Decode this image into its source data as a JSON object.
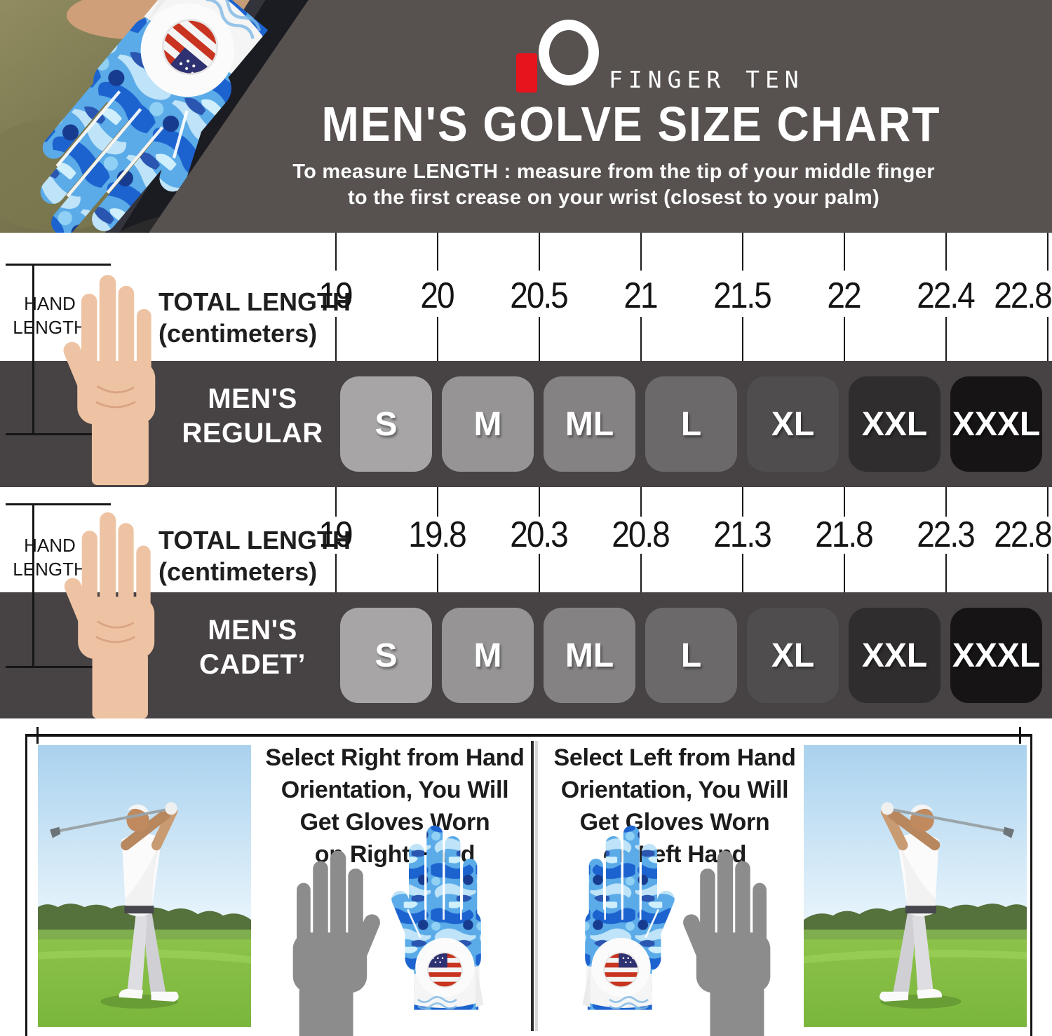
{
  "brand": {
    "name": "FINGER TEN",
    "logo_mark": "10"
  },
  "header": {
    "title": "MEN'S GOLVE SIZE CHART",
    "subtitle_line1": "To measure LENGTH : measure from the tip of your middle finger",
    "subtitle_line2": "to the first crease on your wrist (closest to your palm)"
  },
  "charts": [
    {
      "hand_label_line1": "HAND",
      "hand_label_line2": "LENGTH",
      "measure_label_line1": "TOTAL LENGTH",
      "measure_label_line2": "(centimeters)",
      "lengths_cm": [
        "19",
        "20",
        "20.5",
        "21",
        "21.5",
        "22",
        "22.4",
        "22.8"
      ],
      "row_label_line1": "MEN'S",
      "row_label_line2": "REGULAR",
      "sizes": [
        "S",
        "M",
        "ML",
        "L",
        "XL",
        "XXL",
        "XXXL"
      ]
    },
    {
      "hand_label_line1": "HAND",
      "hand_label_line2": "LENGTH",
      "measure_label_line1": "TOTAL LENGTH",
      "measure_label_line2": "(centimeters)",
      "lengths_cm": [
        "19",
        "19.8",
        "20.3",
        "20.8",
        "21.3",
        "21.8",
        "22.3",
        "22.8"
      ],
      "row_label_line1": "MEN'S",
      "row_label_line2": "CADET’",
      "sizes": [
        "S",
        "M",
        "ML",
        "L",
        "XL",
        "XXL",
        "XXXL"
      ]
    }
  ],
  "size_colors": [
    "#a7a5a5",
    "#969494",
    "#858283",
    "#6b6969",
    "#4f4d4d",
    "#2f2d2d",
    "#161415"
  ],
  "footer": {
    "right_text_line1": "Select Right from Hand",
    "right_text_line2": "Orientation, You Will",
    "right_text_line3": "Get Gloves Worn",
    "right_text_line4": "on Right Hand",
    "left_text_line1": "Select Left from Hand",
    "left_text_line2": "Orientation, You Will",
    "left_text_line3": "Get Gloves Worn",
    "left_text_line4": "on Left Hand"
  },
  "colors": {
    "header_bg": "#575150",
    "band_bg": "#474243",
    "accent_red": "#e8141d",
    "camo_blue": "#5aabe8",
    "flag_red": "#c8341f",
    "flag_blue": "#2f3272"
  },
  "chart_data": [
    {
      "type": "table",
      "title": "MEN'S REGULAR",
      "xlabel": "TOTAL LENGTH (centimeters)",
      "tick_values_cm": [
        19,
        20,
        20.5,
        21,
        21.5,
        22,
        22.4,
        22.8
      ],
      "rows": [
        {
          "size": "S",
          "min_cm": 19,
          "max_cm": 20
        },
        {
          "size": "M",
          "min_cm": 20,
          "max_cm": 20.5
        },
        {
          "size": "ML",
          "min_cm": 20.5,
          "max_cm": 21
        },
        {
          "size": "L",
          "min_cm": 21,
          "max_cm": 21.5
        },
        {
          "size": "XL",
          "min_cm": 21.5,
          "max_cm": 22
        },
        {
          "size": "XXL",
          "min_cm": 22,
          "max_cm": 22.4
        },
        {
          "size": "XXXL",
          "min_cm": 22.4,
          "max_cm": 22.8
        }
      ]
    },
    {
      "type": "table",
      "title": "MEN'S CADET’",
      "xlabel": "TOTAL LENGTH (centimeters)",
      "tick_values_cm": [
        19,
        19.8,
        20.3,
        20.8,
        21.3,
        21.8,
        22.3,
        22.8
      ],
      "rows": [
        {
          "size": "S",
          "min_cm": 19,
          "max_cm": 19.8
        },
        {
          "size": "M",
          "min_cm": 19.8,
          "max_cm": 20.3
        },
        {
          "size": "ML",
          "min_cm": 20.3,
          "max_cm": 20.8
        },
        {
          "size": "L",
          "min_cm": 20.8,
          "max_cm": 21.3
        },
        {
          "size": "XL",
          "min_cm": 21.3,
          "max_cm": 21.8
        },
        {
          "size": "XXL",
          "min_cm": 21.8,
          "max_cm": 22.3
        },
        {
          "size": "XXXL",
          "min_cm": 22.3,
          "max_cm": 22.8
        }
      ]
    }
  ]
}
